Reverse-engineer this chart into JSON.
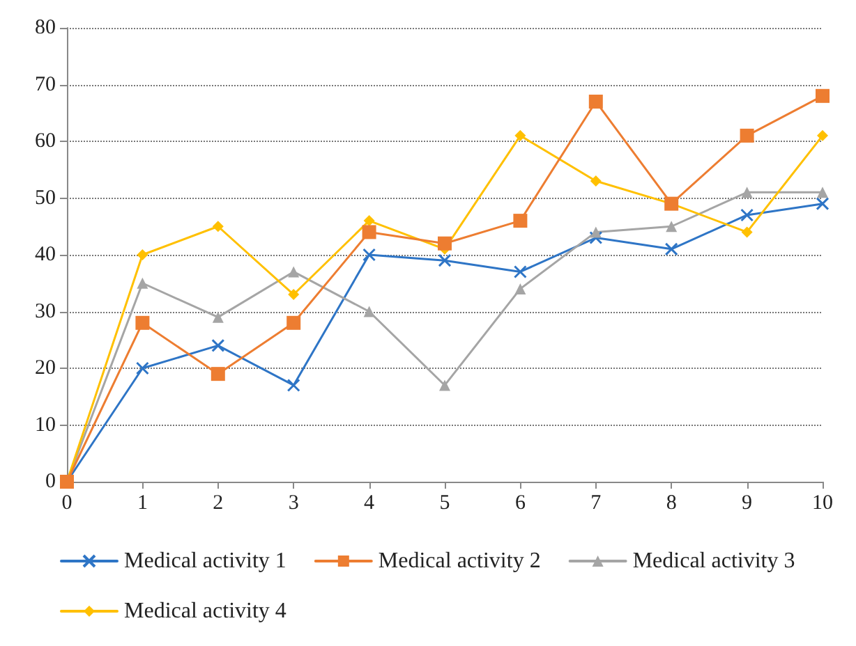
{
  "chart_data": {
    "type": "line",
    "x": [
      0,
      1,
      2,
      3,
      4,
      5,
      6,
      7,
      8,
      9,
      10
    ],
    "xlim": [
      0,
      10
    ],
    "xticks": [
      0,
      1,
      2,
      3,
      4,
      5,
      6,
      7,
      8,
      9,
      10
    ],
    "ylim": [
      0,
      80
    ],
    "yticks": [
      0,
      10,
      20,
      30,
      40,
      50,
      60,
      70,
      80
    ],
    "grid": "y",
    "legend": "bottom",
    "series": [
      {
        "name": "Medical activity 1",
        "color": "#2e75c6",
        "marker": "cross",
        "values": [
          0,
          20,
          24,
          17,
          40,
          39,
          37,
          43,
          41,
          47,
          49
        ]
      },
      {
        "name": "Medical activity 2",
        "color": "#ed7d31",
        "marker": "square",
        "values": [
          0,
          28,
          19,
          28,
          44,
          42,
          46,
          67,
          49,
          61,
          68
        ]
      },
      {
        "name": "Medical activity 3",
        "color": "#a5a5a5",
        "marker": "triangle",
        "values": [
          0,
          35,
          29,
          37,
          30,
          17,
          34,
          44,
          45,
          51,
          51
        ]
      },
      {
        "name": "Medical activity 4",
        "color": "#ffc000",
        "marker": "diamond",
        "values": [
          0,
          40,
          45,
          33,
          46,
          41,
          61,
          53,
          49,
          44,
          61
        ]
      }
    ]
  }
}
